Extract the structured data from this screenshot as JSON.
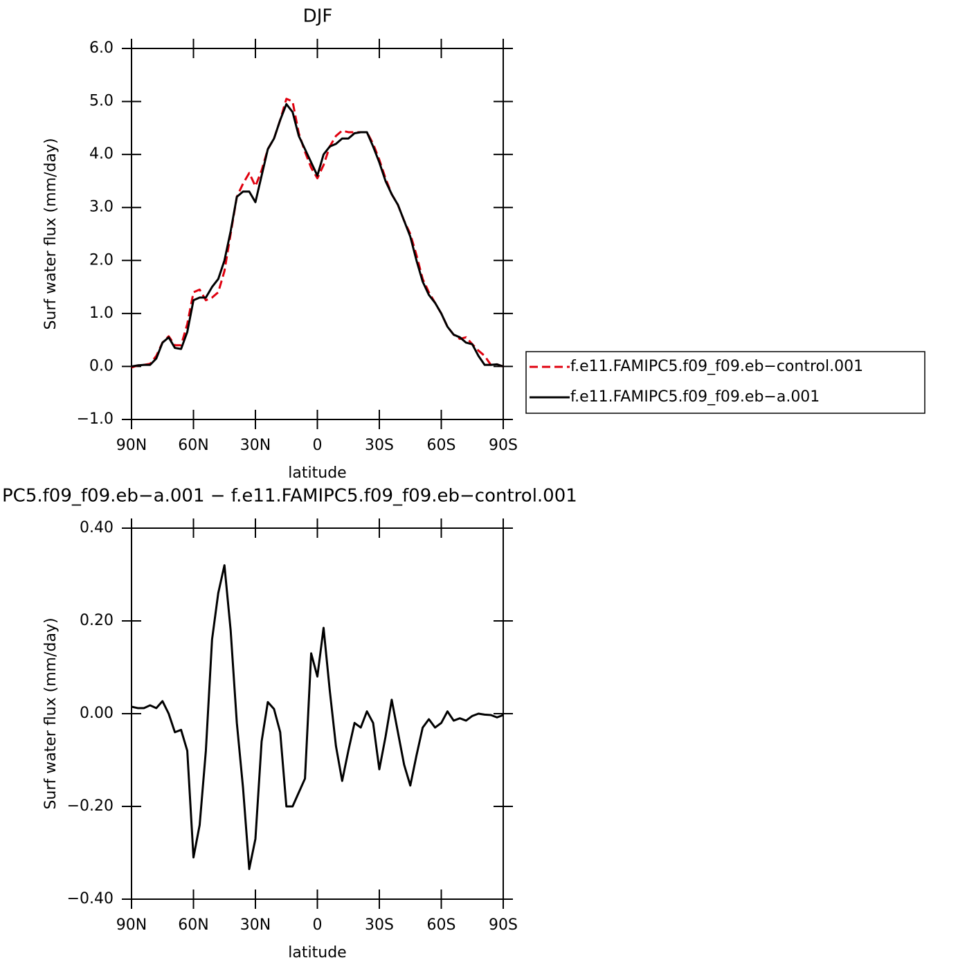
{
  "chart_data": [
    {
      "type": "line",
      "title": "DJF",
      "x_label": "latitude",
      "y_label": "Surf water flux (mm/day)",
      "legend": "right",
      "xlim": [
        90,
        -90
      ],
      "xticks": [
        {
          "value": 90,
          "label": "90N"
        },
        {
          "value": 60,
          "label": "60N"
        },
        {
          "value": 30,
          "label": "30N"
        },
        0,
        {
          "value": -30,
          "label": "30S"
        },
        {
          "value": -60,
          "label": "60S"
        },
        {
          "value": -90,
          "label": "90S"
        }
      ],
      "ylim": [
        -1.0,
        6.0
      ],
      "yticks": [
        {
          "value": -1,
          "label": "−1.0"
        },
        {
          "value": 0,
          "label": "0.0"
        },
        {
          "value": 1,
          "label": "1.0"
        },
        {
          "value": 2,
          "label": "2.0"
        },
        {
          "value": 3,
          "label": "3.0"
        },
        {
          "value": 4,
          "label": "4.0"
        },
        {
          "value": 5,
          "label": "5.0"
        },
        {
          "value": 6,
          "label": "6.0"
        }
      ],
      "x": [
        90,
        87,
        84,
        81,
        78,
        75,
        72,
        69,
        66,
        63,
        60,
        57,
        54,
        51,
        48,
        45,
        42,
        39,
        36,
        33,
        30,
        27,
        24,
        21,
        18,
        15,
        12,
        9,
        6,
        3,
        0,
        -3,
        -6,
        -9,
        -12,
        -15,
        -18,
        -21,
        -24,
        -27,
        -30,
        -33,
        -36,
        -39,
        -42,
        -45,
        -48,
        -51,
        -54,
        -57,
        -60,
        -63,
        -66,
        -69,
        -72,
        -75,
        -78,
        -81,
        -84,
        -87,
        -90
      ],
      "series": [
        {
          "name": "f.e11.FAMIPC5.f09_f09.eb−control.001",
          "color": "#e0000e",
          "line_style": "dashed",
          "values": [
            -0.02,
            0.02,
            0.03,
            0.05,
            0.2,
            0.45,
            0.57,
            0.4,
            0.4,
            0.8,
            1.4,
            1.45,
            1.25,
            1.3,
            1.4,
            1.8,
            2.5,
            3.2,
            3.45,
            3.65,
            3.4,
            3.7,
            4.1,
            4.3,
            4.65,
            5.05,
            5.0,
            4.4,
            4.05,
            3.75,
            3.55,
            3.8,
            4.15,
            4.35,
            4.45,
            4.42,
            4.42,
            4.42,
            4.42,
            4.2,
            3.9,
            3.55,
            3.25,
            3.05,
            2.75,
            2.5,
            2.1,
            1.65,
            1.4,
            1.2,
            1.0,
            0.75,
            0.6,
            0.52,
            0.55,
            0.42,
            0.3,
            0.2,
            0.03,
            0.04,
            0.0
          ]
        },
        {
          "name": "f.e11.FAMIPC5.f09_f09.eb−a.001",
          "color": "#000000",
          "line_style": "solid",
          "values": [
            0.0,
            0.02,
            0.03,
            0.03,
            0.15,
            0.45,
            0.55,
            0.35,
            0.33,
            0.65,
            1.25,
            1.3,
            1.3,
            1.5,
            1.65,
            2.0,
            2.55,
            3.2,
            3.3,
            3.3,
            3.1,
            3.6,
            4.1,
            4.3,
            4.65,
            4.95,
            4.8,
            4.35,
            4.1,
            3.85,
            3.6,
            4.0,
            4.15,
            4.2,
            4.3,
            4.3,
            4.4,
            4.42,
            4.42,
            4.15,
            3.85,
            3.5,
            3.25,
            3.05,
            2.75,
            2.45,
            2.0,
            1.6,
            1.35,
            1.2,
            1.0,
            0.75,
            0.6,
            0.55,
            0.45,
            0.42,
            0.2,
            0.03,
            0.03,
            0.04,
            0.0
          ]
        }
      ]
    },
    {
      "type": "line",
      "title": "PC5.f09_f09.eb−a.001 − f.e11.FAMIPC5.f09_f09.eb−control.001",
      "x_label": "latitude",
      "y_label": "Surf water flux (mm/day)",
      "xlim": [
        90,
        -90
      ],
      "xticks": [
        {
          "value": 90,
          "label": "90N"
        },
        {
          "value": 60,
          "label": "60N"
        },
        {
          "value": 30,
          "label": "30N"
        },
        0,
        {
          "value": -30,
          "label": "30S"
        },
        {
          "value": -60,
          "label": "60S"
        },
        {
          "value": -90,
          "label": "90S"
        }
      ],
      "ylim": [
        -0.4,
        0.4
      ],
      "yticks": [
        {
          "value": -0.4,
          "label": "−0.40"
        },
        {
          "value": -0.2,
          "label": "−0.20"
        },
        {
          "value": 0,
          "label": "0.00"
        },
        {
          "value": 0.2,
          "label": "0.20"
        },
        {
          "value": 0.4,
          "label": "0.40"
        }
      ],
      "x": [
        90,
        87,
        84,
        81,
        78,
        75,
        72,
        69,
        66,
        63,
        60,
        57,
        54,
        51,
        48,
        45,
        42,
        39,
        36,
        33,
        30,
        27,
        24,
        21,
        18,
        15,
        12,
        9,
        6,
        3,
        0,
        -3,
        -6,
        -9,
        -12,
        -15,
        -18,
        -21,
        -24,
        -27,
        -30,
        -33,
        -36,
        -39,
        -42,
        -45,
        -48,
        -51,
        -54,
        -57,
        -60,
        -63,
        -66,
        -69,
        -72,
        -75,
        -78,
        -81,
        -84,
        -87,
        -90
      ],
      "series": [
        {
          "color": "#000000",
          "line_style": "solid",
          "values": [
            0.015,
            0.012,
            0.012,
            0.018,
            0.012,
            0.027,
            0.0,
            -0.04,
            -0.035,
            -0.08,
            -0.31,
            -0.24,
            -0.08,
            0.16,
            0.26,
            0.32,
            0.18,
            -0.02,
            -0.16,
            -0.335,
            -0.27,
            -0.06,
            0.025,
            0.01,
            -0.04,
            -0.2,
            -0.2,
            -0.17,
            -0.14,
            0.13,
            0.08,
            0.185,
            0.05,
            -0.07,
            -0.145,
            -0.08,
            -0.02,
            -0.03,
            0.005,
            -0.02,
            -0.12,
            -0.05,
            0.03,
            -0.04,
            -0.11,
            -0.155,
            -0.09,
            -0.03,
            -0.012,
            -0.03,
            -0.02,
            0.005,
            -0.015,
            -0.01,
            -0.015,
            -0.005,
            0.0,
            -0.002,
            -0.003,
            -0.008,
            -0.003
          ]
        }
      ]
    }
  ]
}
